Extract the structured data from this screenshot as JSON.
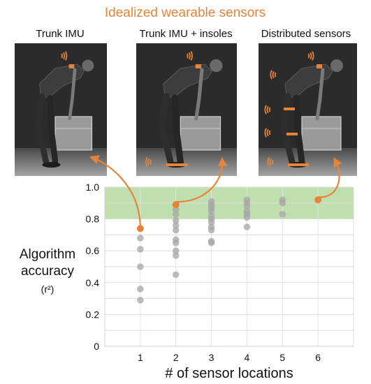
{
  "header": {
    "title": "Idealized wearable sensors"
  },
  "panels": [
    {
      "label": "Trunk IMU"
    },
    {
      "label": "Trunk IMU + insoles"
    },
    {
      "label": "Distributed sensors"
    }
  ],
  "colors": {
    "accent": "#E8843A",
    "highlight_band": "#B9DCA6",
    "points": "#A6A6A6",
    "photo_background": "#2B2B2B"
  },
  "chart_data": {
    "type": "scatter",
    "title": "",
    "xlabel": "# of sensor locations",
    "ylabel": "Algorithm accuracy",
    "ylabel_unit": "(r²)",
    "xlim": [
      0,
      7
    ],
    "ylim": [
      0,
      1.0
    ],
    "x_ticks": [
      "1",
      "2",
      "3",
      "4",
      "5",
      "6"
    ],
    "y_ticks": [
      "0",
      "0.2",
      "0.4",
      "0.6",
      "0.8",
      "1.0"
    ],
    "grid": true,
    "highlight_band": [
      0.8,
      1.0
    ],
    "points": [
      {
        "x": 1,
        "y": 0.74,
        "best": true
      },
      {
        "x": 1,
        "y": 0.68
      },
      {
        "x": 1,
        "y": 0.61
      },
      {
        "x": 1,
        "y": 0.5
      },
      {
        "x": 1,
        "y": 0.36
      },
      {
        "x": 1,
        "y": 0.29
      },
      {
        "x": 2,
        "y": 0.89,
        "best": true
      },
      {
        "x": 2,
        "y": 0.86
      },
      {
        "x": 2,
        "y": 0.83
      },
      {
        "x": 2,
        "y": 0.79
      },
      {
        "x": 2,
        "y": 0.76
      },
      {
        "x": 2,
        "y": 0.73
      },
      {
        "x": 2,
        "y": 0.67
      },
      {
        "x": 2,
        "y": 0.65
      },
      {
        "x": 2,
        "y": 0.6
      },
      {
        "x": 2,
        "y": 0.57
      },
      {
        "x": 2,
        "y": 0.45
      },
      {
        "x": 3,
        "y": 0.91
      },
      {
        "x": 3,
        "y": 0.89
      },
      {
        "x": 3,
        "y": 0.87
      },
      {
        "x": 3,
        "y": 0.85
      },
      {
        "x": 3,
        "y": 0.82
      },
      {
        "x": 3,
        "y": 0.8
      },
      {
        "x": 3,
        "y": 0.78
      },
      {
        "x": 3,
        "y": 0.75
      },
      {
        "x": 3,
        "y": 0.73
      },
      {
        "x": 3,
        "y": 0.66
      },
      {
        "x": 3,
        "y": 0.65
      },
      {
        "x": 4,
        "y": 0.92
      },
      {
        "x": 4,
        "y": 0.9
      },
      {
        "x": 4,
        "y": 0.88
      },
      {
        "x": 4,
        "y": 0.85
      },
      {
        "x": 4,
        "y": 0.83
      },
      {
        "x": 4,
        "y": 0.81
      },
      {
        "x": 4,
        "y": 0.75
      },
      {
        "x": 5,
        "y": 0.92
      },
      {
        "x": 5,
        "y": 0.9
      },
      {
        "x": 5,
        "y": 0.83
      },
      {
        "x": 6,
        "y": 0.92,
        "best": true
      }
    ]
  }
}
